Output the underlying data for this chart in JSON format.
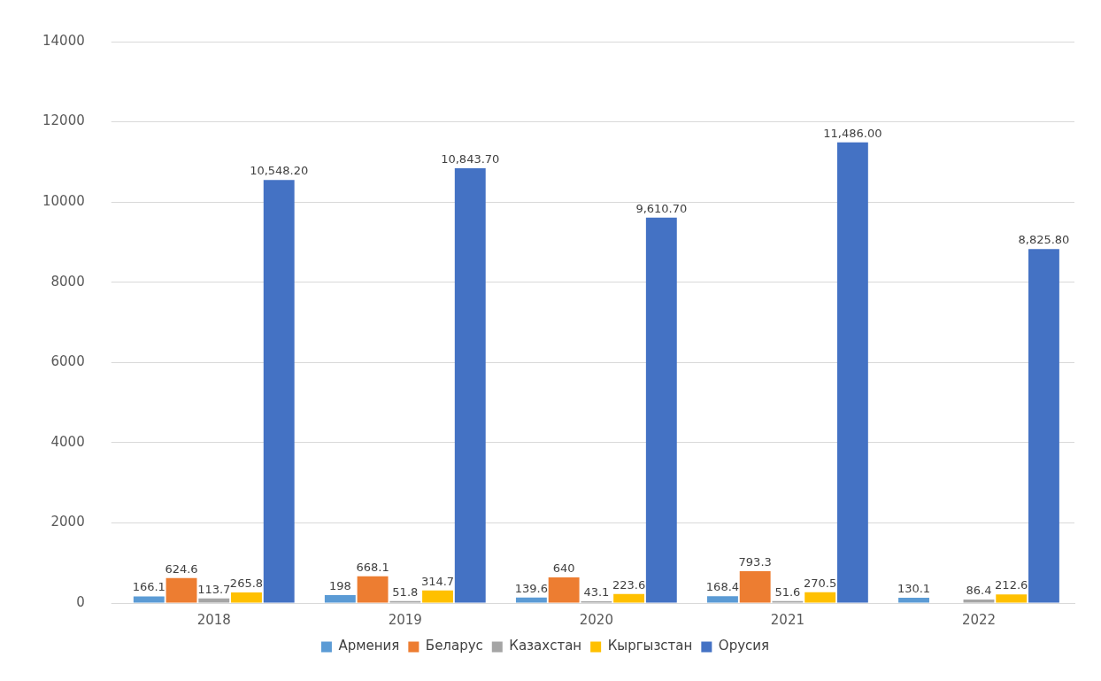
{
  "chart_data": {
    "type": "bar",
    "categories": [
      "2018",
      "2019",
      "2020",
      "2021",
      "2022"
    ],
    "series": [
      {
        "name": "Армения",
        "color": "#5b9bd5",
        "values": [
          166.1,
          198,
          139.6,
          168.4,
          130.1
        ],
        "value_labels": [
          "166.1",
          "198",
          "139.6",
          "168.4",
          "130.1"
        ]
      },
      {
        "name": "Беларус",
        "color": "#ed7d31",
        "values": [
          624.6,
          668.1,
          640,
          793.3,
          null
        ],
        "value_labels": [
          "624.6",
          "668.1",
          "640",
          "793.3",
          null
        ]
      },
      {
        "name": "Казахстан",
        "color": "#a5a5a5",
        "values": [
          113.7,
          51.8,
          43.1,
          51.6,
          86.4
        ],
        "value_labels": [
          "113.7",
          "51.8",
          "43.1",
          "51.6",
          "86.4"
        ]
      },
      {
        "name": "Кыргызстан",
        "color": "#ffc000",
        "values": [
          265.8,
          314.7,
          223.6,
          270.5,
          212.6
        ],
        "value_labels": [
          "265.8",
          "314.7",
          "223.6",
          "270.5",
          "212.6"
        ]
      },
      {
        "name": "Орусия",
        "color": "#4472c4",
        "values": [
          10548.2,
          10843.7,
          9610.7,
          11486,
          8825.8
        ],
        "value_labels": [
          "10,548.20",
          "10,843.70",
          "9,610.70",
          "11,486.00",
          "8,825.80"
        ]
      }
    ],
    "ylim": [
      0,
      14000
    ],
    "yticks": [
      0,
      2000,
      4000,
      6000,
      8000,
      10000,
      12000,
      14000
    ],
    "grid": "y",
    "legend": "bottom"
  }
}
